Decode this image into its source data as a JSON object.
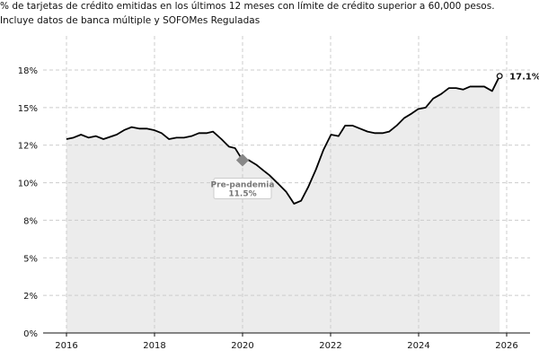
{
  "chart_data": {
    "type": "area",
    "title": "% de tarjetas de crédito emitidas en los últimos 12 meses con límite de crédito superior a 60,000 pesos.",
    "subtitle": "Incluye datos de banca múltiple y SOFOMes Reguladas",
    "xlabel": "",
    "ylabel": "",
    "xlim": [
      2015.7,
      2026.3
    ],
    "ylim": [
      0,
      17.5
    ],
    "grid": true,
    "x_ticks": [
      2016,
      2018,
      2020,
      2022,
      2024,
      2026
    ],
    "x_tick_labels": [
      "2016",
      "2018",
      "2020",
      "2022",
      "2024",
      "2026"
    ],
    "y_ticks": [
      0,
      2.5,
      5,
      7.5,
      10,
      12.5,
      15,
      17.5
    ],
    "y_tick_labels": [
      "0%",
      "2%",
      "5%",
      "8%",
      "10%",
      "12%",
      "15%",
      "18%"
    ],
    "colors": {
      "line": "#000000",
      "fill": "#ececec",
      "grid": "#cccccc",
      "marker": "#888888"
    },
    "x": [
      2016.0,
      2016.16,
      2016.33,
      2016.5,
      2016.67,
      2016.84,
      2017.14,
      2017.31,
      2017.48,
      2017.65,
      2017.82,
      2017.99,
      2018.16,
      2018.33,
      2018.5,
      2018.67,
      2018.84,
      2019.01,
      2019.18,
      2019.33,
      2019.52,
      2019.69,
      2019.83,
      2020.0,
      2020.14,
      2020.31,
      2020.48,
      2020.61,
      2020.82,
      2020.99,
      2021.17,
      2021.33,
      2021.49,
      2021.67,
      2021.84,
      2022.01,
      2022.18,
      2022.33,
      2022.5,
      2022.67,
      2022.84,
      2023.01,
      2023.18,
      2023.33,
      2023.5,
      2023.67,
      2023.84,
      2023.99,
      2024.16,
      2024.33,
      2024.51,
      2024.69,
      2024.85,
      2025.01,
      2025.17,
      2025.33,
      2025.49,
      2025.67,
      2025.84
    ],
    "values": [
      12.9,
      13.0,
      13.2,
      13.0,
      13.1,
      12.9,
      13.2,
      13.5,
      13.7,
      13.6,
      13.6,
      13.5,
      13.3,
      12.9,
      13.0,
      13.0,
      13.1,
      13.3,
      13.3,
      13.4,
      12.9,
      12.4,
      12.3,
      11.5,
      11.5,
      11.2,
      10.8,
      10.5,
      9.9,
      9.4,
      8.6,
      8.8,
      9.7,
      10.9,
      12.2,
      13.2,
      13.1,
      13.8,
      13.8,
      13.6,
      13.4,
      13.3,
      13.3,
      13.4,
      13.8,
      14.3,
      14.6,
      14.9,
      15.0,
      15.6,
      15.9,
      16.3,
      16.3,
      16.2,
      16.4,
      16.4,
      16.4,
      16.1,
      17.1
    ],
    "annotations": [
      {
        "label": "Pre-pandemia",
        "value_label": "11.5%",
        "x": 2020.0,
        "y": 11.5
      },
      {
        "label": "17.1%",
        "x": 2025.84,
        "y": 17.1
      }
    ]
  }
}
